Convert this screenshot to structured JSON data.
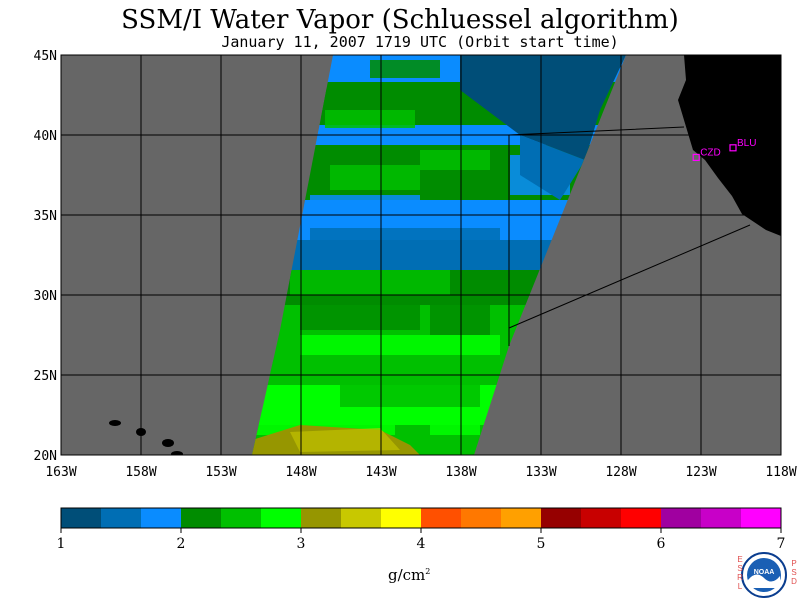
{
  "title": "SSM/I Water Vapor (Schluessel algorithm)",
  "subtitle": "January 11, 2007  1719 UTC  (Orbit start time)",
  "map": {
    "lat_ticks": [
      "45N",
      "40N",
      "35N",
      "30N",
      "25N",
      "20N"
    ],
    "lon_ticks": [
      "163W",
      "158W",
      "153W",
      "148W",
      "143W",
      "138W",
      "133W",
      "128W",
      "123W",
      "118W"
    ],
    "stations": [
      {
        "id": "CZD",
        "lon": -123.3,
        "lat": 38.6
      },
      {
        "id": "BLU",
        "lon": -121.0,
        "lat": 39.2
      }
    ],
    "colors": {
      "no_data": "#666666",
      "land": "#000000",
      "station": "#ff00ff"
    }
  },
  "colorbar": {
    "ticks": [
      "1",
      "2",
      "3",
      "4",
      "5",
      "6",
      "7"
    ],
    "units": "g/cm",
    "units_sup": "2",
    "colors": [
      "#004e78",
      "#006eb4",
      "#0a8cff",
      "#008c00",
      "#00c000",
      "#00ff00",
      "#969600",
      "#c8c800",
      "#ffff00",
      "#ff5000",
      "#ff7800",
      "#ffa000",
      "#960000",
      "#c80000",
      "#ff0000",
      "#a000a0",
      "#c800c8",
      "#ff00ff"
    ]
  },
  "logo": {
    "left_text": "ESRL",
    "right_text": "PSD",
    "center_text": "NOAA"
  }
}
